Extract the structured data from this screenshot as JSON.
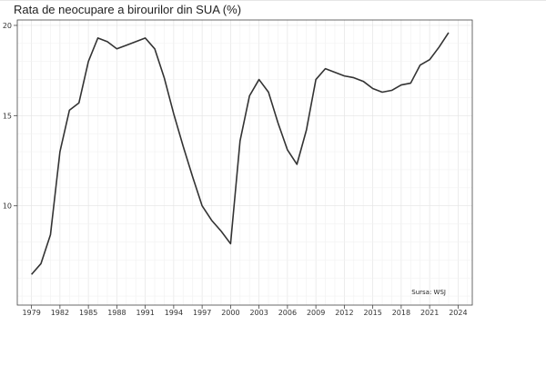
{
  "chart_data": {
    "type": "line",
    "title": "Rata de neocupare a birourilor din SUA (%)",
    "xlabel": "",
    "ylabel": "",
    "source": "Sursa: WSJ",
    "xlim": [
      1977.5,
      2025.5
    ],
    "ylim": [
      4.5,
      20.3
    ],
    "grid": true,
    "xticks": [
      1979,
      1982,
      1985,
      1988,
      1991,
      1994,
      1997,
      2000,
      2003,
      2006,
      2009,
      2012,
      2015,
      2018,
      2021,
      2024
    ],
    "yticks": [
      10,
      15,
      20
    ],
    "series": [
      {
        "color": "#333333",
        "x": [
          1979,
          1980,
          1981,
          1982,
          1983,
          1984,
          1985,
          1986,
          1987,
          1988,
          1989,
          1990,
          1991,
          1992,
          1993,
          1994,
          1995,
          1996,
          1997,
          1998,
          1999,
          2000,
          2001,
          2002,
          2003,
          2004,
          2005,
          2006,
          2007,
          2008,
          2009,
          2010,
          2011,
          2012,
          2013,
          2014,
          2015,
          2016,
          2017,
          2018,
          2019,
          2020,
          2021,
          2022,
          2023
        ],
        "values": [
          6.2,
          6.8,
          8.4,
          13.0,
          15.3,
          15.7,
          18.0,
          19.3,
          19.1,
          18.7,
          18.9,
          19.1,
          19.3,
          18.7,
          17.1,
          15.1,
          13.3,
          11.6,
          10.0,
          9.2,
          8.6,
          7.9,
          13.6,
          16.1,
          17.0,
          16.3,
          14.6,
          13.1,
          12.3,
          14.2,
          17.0,
          17.6,
          17.4,
          17.2,
          17.1,
          16.9,
          16.5,
          16.3,
          16.4,
          16.7,
          16.8,
          17.8,
          18.1,
          18.8,
          19.6
        ]
      }
    ]
  }
}
